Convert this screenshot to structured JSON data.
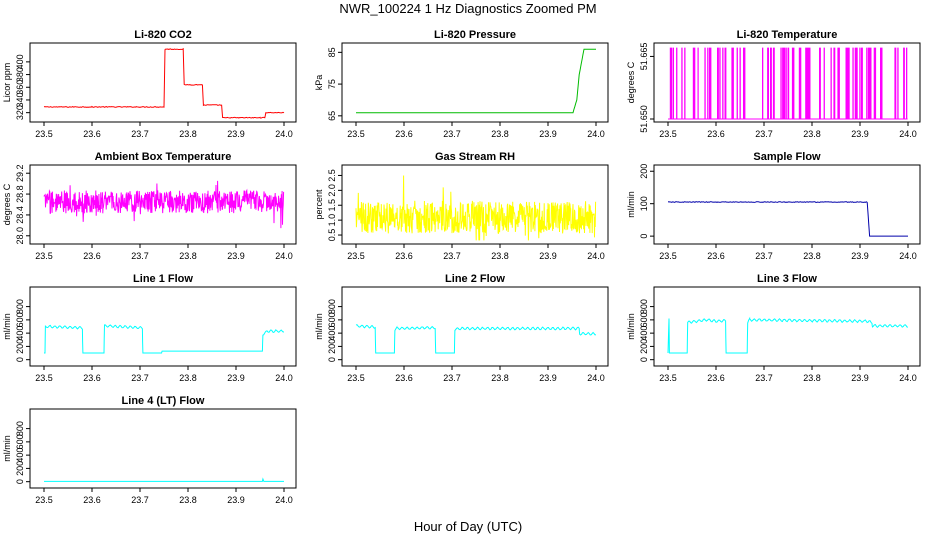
{
  "title": "NWR_100224  1 Hz Diagnostics Zoomed PM",
  "xlabel": "Hour of Day (UTC)",
  "chart_data": [
    {
      "type": "line",
      "title": "Li-820 CO2",
      "ylabel": "Licor ppm",
      "color": "#ff0000",
      "xlim": [
        23.5,
        24.0
      ],
      "ylim": [
        310,
        425
      ],
      "xticks": [
        "23.5",
        "23.6",
        "23.7",
        "23.8",
        "23.9",
        "24.0"
      ],
      "yticks": [
        "320",
        "340",
        "360",
        "380",
        "400"
      ],
      "series": [
        {
          "x": [
            23.5,
            23.6,
            23.7,
            23.75,
            23.752,
            23.79,
            23.792,
            23.83,
            23.832,
            23.87,
            23.872,
            23.95,
            23.952,
            23.96,
            23.962,
            24.0
          ],
          "values": [
            329,
            329,
            329,
            329,
            420,
            420,
            364,
            364,
            332,
            332,
            312,
            312,
            312,
            312,
            320,
            320
          ]
        }
      ]
    },
    {
      "type": "line",
      "title": "Li-820 Pressure",
      "ylabel": "kPa",
      "color": "#00bb00",
      "xlim": [
        23.5,
        24.0
      ],
      "ylim": [
        64,
        87
      ],
      "xticks": [
        "23.5",
        "23.6",
        "23.7",
        "23.8",
        "23.9",
        "24.0"
      ],
      "yticks": [
        "65",
        "75",
        "85"
      ],
      "series": [
        {
          "x": [
            23.5,
            23.7,
            23.94,
            23.952,
            23.96,
            23.965,
            23.975,
            24.0
          ],
          "values": [
            66,
            66,
            66,
            66,
            70,
            78,
            86,
            86
          ]
        }
      ]
    },
    {
      "type": "line",
      "title": "Li-820 Temperature",
      "ylabel": "degrees C",
      "color": "#ff00ff",
      "xlim": [
        23.5,
        24.0
      ],
      "ylim": [
        51.65,
        51.6675
      ],
      "xticks": [
        "23.5",
        "23.6",
        "23.7",
        "23.8",
        "23.9",
        "24.0"
      ],
      "yticks": [
        "51.650",
        "51.665"
      ],
      "series": [
        {
          "x": [
            23.5,
            24.0
          ],
          "values": [
            51.65,
            51.65
          ]
        }
      ]
    },
    {
      "type": "line",
      "title": "Ambient Box Temperature",
      "ylabel": "degrees C",
      "color": "#ff00ff",
      "xlim": [
        23.5,
        24.0
      ],
      "ylim": [
        27.9,
        29.3
      ],
      "xticks": [
        "23.5",
        "23.6",
        "23.7",
        "23.8",
        "23.9",
        "24.0"
      ],
      "yticks": [
        "28.0",
        "28.4",
        "28.8",
        "29.2"
      ],
      "series": [
        {
          "x": [
            23.5,
            24.0
          ],
          "values": [
            28.65,
            28.65
          ]
        }
      ]
    },
    {
      "type": "line",
      "title": "Gas Stream RH",
      "ylabel": "percent",
      "color": "#ffff00",
      "xlim": [
        23.5,
        24.0
      ],
      "ylim": [
        0.3,
        2.75
      ],
      "xticks": [
        "23.5",
        "23.6",
        "23.7",
        "23.8",
        "23.9",
        "24.0"
      ],
      "yticks": [
        "0.5",
        "1.0",
        "1.5",
        "2.0",
        "2.5"
      ],
      "series": [
        {
          "x": [
            23.5,
            24.0
          ],
          "values": [
            1.1,
            1.1
          ]
        }
      ]
    },
    {
      "type": "line",
      "title": "Sample Flow",
      "ylabel": "ml/min",
      "color": "#0000aa",
      "xlim": [
        23.5,
        24.0
      ],
      "ylim": [
        -15,
        210
      ],
      "xticks": [
        "23.5",
        "23.6",
        "23.7",
        "23.8",
        "23.9",
        "24.0"
      ],
      "yticks": [
        "0",
        "100",
        "200"
      ],
      "series": [
        {
          "x": [
            23.5,
            23.9,
            23.915,
            23.92,
            24.0
          ],
          "values": [
            105,
            105,
            105,
            0,
            0
          ]
        }
      ]
    },
    {
      "type": "line",
      "title": "Line 1 Flow",
      "ylabel": "ml/min",
      "color": "#00ffff",
      "xlim": [
        23.5,
        24.0
      ],
      "ylim": [
        -50,
        1050
      ],
      "xticks": [
        "23.5",
        "23.6",
        "23.7",
        "23.8",
        "23.9",
        "24.0"
      ],
      "yticks": [
        "0",
        "200",
        "400",
        "600",
        "800"
      ],
      "series": [
        {
          "x": [
            23.5,
            23.502,
            23.503,
            23.58,
            23.581,
            23.625,
            23.626,
            23.705,
            23.706,
            23.745,
            23.746,
            23.955,
            23.956,
            23.965,
            24.0
          ],
          "values": [
            100,
            100,
            500,
            480,
            100,
            100,
            510,
            480,
            100,
            100,
            130,
            130,
            380,
            430,
            430
          ]
        }
      ]
    },
    {
      "type": "line",
      "title": "Line 2 Flow",
      "ylabel": "ml/min",
      "color": "#00ffff",
      "xlim": [
        23.5,
        24.0
      ],
      "ylim": [
        -50,
        1050
      ],
      "xticks": [
        "23.5",
        "23.6",
        "23.7",
        "23.8",
        "23.9",
        "24.0"
      ],
      "yticks": [
        "0",
        "200",
        "400",
        "600",
        "800"
      ],
      "series": [
        {
          "x": [
            23.5,
            23.54,
            23.541,
            23.58,
            23.581,
            23.585,
            23.64,
            23.665,
            23.666,
            23.705,
            23.706,
            23.715,
            23.965,
            23.966,
            24.0
          ],
          "values": [
            510,
            490,
            100,
            100,
            460,
            470,
            480,
            480,
            100,
            100,
            460,
            470,
            470,
            390,
            390
          ]
        }
      ]
    },
    {
      "type": "line",
      "title": "Line 3 Flow",
      "ylabel": "ml/min",
      "color": "#00ffff",
      "xlim": [
        23.5,
        24.0
      ],
      "ylim": [
        -50,
        1050
      ],
      "xticks": [
        "23.5",
        "23.6",
        "23.7",
        "23.8",
        "23.9",
        "24.0"
      ],
      "yticks": [
        "0",
        "200",
        "400",
        "600",
        "800"
      ],
      "series": [
        {
          "x": [
            23.5,
            23.502,
            23.503,
            23.54,
            23.541,
            23.58,
            23.6,
            23.62,
            23.621,
            23.665,
            23.666,
            23.67,
            23.915,
            23.925,
            23.926,
            24.0
          ],
          "values": [
            100,
            600,
            100,
            100,
            560,
            600,
            580,
            590,
            100,
            100,
            560,
            600,
            580,
            560,
            510,
            510
          ]
        }
      ]
    },
    {
      "type": "line",
      "title": "Line 4 (LT) Flow",
      "ylabel": "ml/min",
      "color": "#00ffff",
      "xlim": [
        23.5,
        24.0
      ],
      "ylim": [
        -50,
        1050
      ],
      "xticks": [
        "23.5",
        "23.6",
        "23.7",
        "23.8",
        "23.9",
        "24.0"
      ],
      "yticks": [
        "0",
        "200",
        "400",
        "600",
        "800"
      ],
      "series": [
        {
          "x": [
            23.5,
            23.955,
            23.956,
            23.958,
            23.96,
            24.0
          ],
          "values": [
            5,
            5,
            40,
            5,
            5,
            5
          ]
        }
      ]
    }
  ]
}
